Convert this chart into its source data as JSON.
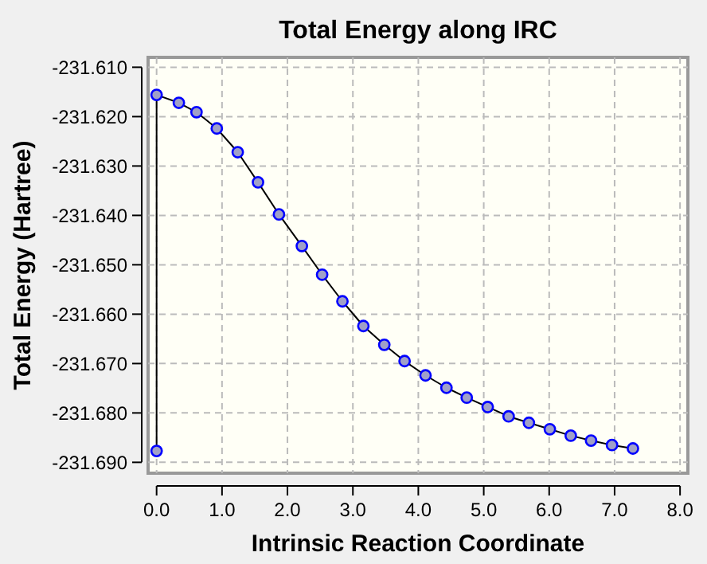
{
  "chart_data": {
    "type": "line",
    "title": "Total Energy along IRC",
    "xlabel": "Intrinsic Reaction Coordinate",
    "ylabel": "Total Energy (Hartree)",
    "x": [
      0,
      0,
      0.34,
      0.61,
      0.92,
      1.24,
      1.55,
      1.87,
      2.22,
      2.53,
      2.84,
      3.16,
      3.48,
      3.79,
      4.11,
      4.43,
      4.74,
      5.06,
      5.38,
      5.69,
      6.01,
      6.33,
      6.64,
      6.96,
      7.28
    ],
    "series": [
      {
        "color": "#0000ff",
        "values": [
          -231.6877,
          -231.6156,
          -231.6172,
          -231.6191,
          -231.6224,
          -231.6272,
          -231.6333,
          -231.6398,
          -231.6462,
          -231.652,
          -231.6574,
          -231.6624,
          -231.6662,
          -231.6695,
          -231.6724,
          -231.6749,
          -231.6769,
          -231.6788,
          -231.6807,
          -231.682,
          -231.6833,
          -231.6846,
          -231.6856,
          -231.6865,
          -231.6872
        ]
      }
    ],
    "xlim": [
      -0.13,
      8.12
    ],
    "ylim": [
      -231.6922,
      -231.608
    ],
    "xticks": [
      {
        "value": 0,
        "label": "0.0"
      },
      {
        "value": 1,
        "label": "1.0"
      },
      {
        "value": 2,
        "label": "2.0"
      },
      {
        "value": 3,
        "label": "3.0"
      },
      {
        "value": 4,
        "label": "4.0"
      },
      {
        "value": 5,
        "label": "5.0"
      },
      {
        "value": 6,
        "label": "6.0"
      },
      {
        "value": 7,
        "label": "7.0"
      },
      {
        "value": 8,
        "label": "8.0"
      }
    ],
    "yticks": [
      {
        "value": -231.61,
        "label": "-231.610"
      },
      {
        "value": -231.62,
        "label": "-231.620"
      },
      {
        "value": -231.63,
        "label": "-231.630"
      },
      {
        "value": -231.64,
        "label": "-231.640"
      },
      {
        "value": -231.65,
        "label": "-231.650"
      },
      {
        "value": -231.66,
        "label": "-231.660"
      },
      {
        "value": -231.67,
        "label": "-231.670"
      },
      {
        "value": -231.68,
        "label": "-231.680"
      },
      {
        "value": -231.69,
        "label": "-231.690"
      }
    ],
    "grid": true,
    "marker": "circle",
    "line_style": "solid"
  }
}
